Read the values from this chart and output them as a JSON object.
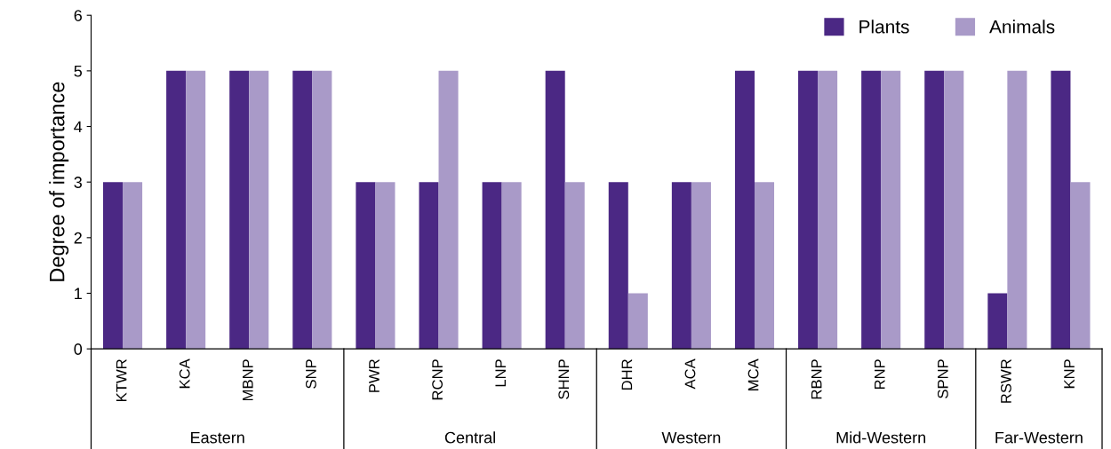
{
  "chart_data": {
    "type": "bar",
    "ylabel": "Degree of importance",
    "categories": [
      "KTWR",
      "KCA",
      "MBNP",
      "SNP",
      "PWR",
      "RCNP",
      "LNP",
      "SHNP",
      "DHR",
      "ACA",
      "MCA",
      "RBNP",
      "RNP",
      "SPNP",
      "RSWR",
      "KNP"
    ],
    "series": [
      {
        "name": "Plants",
        "color": "#4b2884",
        "values": [
          3,
          5,
          5,
          5,
          3,
          3,
          3,
          5,
          3,
          3,
          5,
          5,
          5,
          5,
          1,
          5
        ]
      },
      {
        "name": "Animals",
        "color": "#a99ac8",
        "values": [
          3,
          5,
          5,
          5,
          3,
          5,
          3,
          3,
          1,
          3,
          3,
          5,
          5,
          5,
          5,
          3
        ]
      }
    ],
    "annotations": [
      "Eastern",
      "Central",
      "Western",
      "Mid-Western",
      "Far-Western"
    ],
    "ylim": [
      0,
      6
    ],
    "yticks": [
      0,
      1,
      2,
      3,
      4,
      5,
      6
    ],
    "grid": false,
    "legend": "top right"
  }
}
